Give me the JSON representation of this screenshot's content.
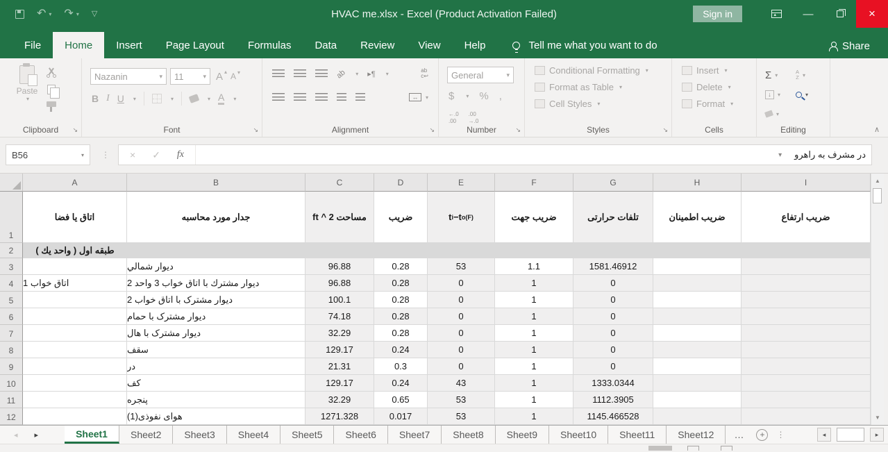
{
  "colors": {
    "excel_green": "#217346",
    "close_red": "#e81123",
    "find_blue": "#2b579a",
    "band_gray": "#d9d9d9"
  },
  "icons": {
    "undo": "↶",
    "redo": "↷",
    "qat_menu": "▽",
    "dropdown": "▾",
    "minimize": "—",
    "close": "×",
    "cancel": "×",
    "check": "✓",
    "fx": "fx",
    "autosum": "Σ",
    "collapse": "∧",
    "dots": "⋮",
    "ellipsis": "…",
    "add_sheet": "+",
    "nav_left": "◂",
    "nav_right": "▸",
    "scroll_up": "▲",
    "scroll_down": "▼",
    "merge_arrows": "↔",
    "fill_down": "↓",
    "direction_mark": "▸¶",
    "orientation": "ab",
    "wrap_line1": "ab",
    "wrap_line2": "c↩",
    "sort_a": "A",
    "sort_z": "Z"
  },
  "titlebar": {
    "title": "HVAC me.xlsx  -  Excel (Product Activation Failed)",
    "sign_in": "Sign in"
  },
  "menu": {
    "tabs": [
      "File",
      "Home",
      "Insert",
      "Page Layout",
      "Formulas",
      "Data",
      "Review",
      "View",
      "Help"
    ],
    "active_tab": "Home",
    "tell_me": "Tell me what you want to do",
    "share": "Share"
  },
  "ribbon": {
    "clipboard": {
      "label": "Clipboard",
      "paste": "Paste"
    },
    "font": {
      "label": "Font",
      "font_name": "Nazanin",
      "font_size": "11",
      "bold": "B",
      "italic": "I",
      "underline": "U",
      "color_a": "A"
    },
    "alignment": {
      "label": "Alignment"
    },
    "number": {
      "label": "Number",
      "format": "General",
      "currency": "$",
      "percent": "%",
      "comma": ",",
      "inc_top": "←.0",
      "inc_bottom": ".00",
      "dec_top": ".00",
      "dec_bottom": "→.0"
    },
    "styles": {
      "label": "Styles",
      "items": [
        "Conditional Formatting",
        "Format as Table",
        "Cell Styles"
      ]
    },
    "cells": {
      "label": "Cells",
      "items": [
        "Insert",
        "Delete",
        "Format"
      ]
    },
    "editing": {
      "label": "Editing"
    }
  },
  "formula_bar": {
    "name_box": "B56",
    "content": "در مشرف به راهرو"
  },
  "sheet": {
    "col_letters": [
      "A",
      "B",
      "C",
      "D",
      "E",
      "F",
      "G",
      "H",
      "I"
    ],
    "header_row_number": "1",
    "band_row_number": "2",
    "headers": {
      "a": "اتاق يا فضا",
      "b": "جدار مورد محاسبه",
      "c": "مساحت ft ^ 2",
      "d": "ضريب",
      "e_base1": "t",
      "e_sub1": "i",
      "e_minus": " − ",
      "e_base2": "t",
      "e_sub2": "o(F)",
      "f": "ضريب جهت",
      "g": "تلفات حرارتى",
      "h": "ضريب اطمينان",
      "i": "ضريب ارتفاع"
    },
    "band_text": "طبقه اول ( واحد يك )",
    "rows": [
      {
        "n": "3",
        "a": "",
        "b": "ديوار شمالي",
        "c": "96.88",
        "d": "0.28",
        "e": "53",
        "f": "1.1",
        "g": "1581.46912",
        "h": "",
        "i": ""
      },
      {
        "n": "4",
        "a": "اتاق خواب 1",
        "b": "ديوار مشترك با اتاق خواب 3 واحد 2",
        "c": "96.88",
        "d": "0.28",
        "e": "0",
        "f": "1",
        "g": "0",
        "h": "",
        "i": ""
      },
      {
        "n": "5",
        "a": "",
        "b": "ديوار مشترک با اتاق خواب 2",
        "c": "100.1",
        "d": "0.28",
        "e": "0",
        "f": "1",
        "g": "0",
        "h": "",
        "i": ""
      },
      {
        "n": "6",
        "a": "",
        "b": "ديوار مشترک با حمام",
        "c": "74.18",
        "d": "0.28",
        "e": "0",
        "f": "1",
        "g": "0",
        "h": "",
        "i": ""
      },
      {
        "n": "7",
        "a": "",
        "b": "ديوار مشترک با هال",
        "c": "32.29",
        "d": "0.28",
        "e": "0",
        "f": "1",
        "g": "0",
        "h": "",
        "i": ""
      },
      {
        "n": "8",
        "a": "",
        "b": "سقف",
        "c": "129.17",
        "d": "0.24",
        "e": "0",
        "f": "1",
        "g": "0",
        "h": "",
        "i": ""
      },
      {
        "n": "9",
        "a": "",
        "b": "در",
        "c": "21.31",
        "d": "0.3",
        "e": "0",
        "f": "1",
        "g": "0",
        "h": "",
        "i": ""
      },
      {
        "n": "10",
        "a": "",
        "b": "كف",
        "c": "129.17",
        "d": "0.24",
        "e": "43",
        "f": "1",
        "g": "1333.0344",
        "h": "",
        "i": ""
      },
      {
        "n": "11",
        "a": "",
        "b": "پنجره",
        "c": "32.29",
        "d": "0.65",
        "e": "53",
        "f": "1",
        "g": "1112.3905",
        "h": "",
        "i": ""
      },
      {
        "n": "12",
        "a": "",
        "b": "هواى نفوذى(1)",
        "c": "1271.328",
        "d": "0.017",
        "e": "53",
        "f": "1",
        "g": "1145.466528",
        "h": "",
        "i": ""
      }
    ]
  },
  "sheet_tabs": {
    "names": [
      "Sheet1",
      "Sheet2",
      "Sheet3",
      "Sheet4",
      "Sheet5",
      "Sheet6",
      "Sheet7",
      "Sheet8",
      "Sheet9",
      "Sheet10",
      "Sheet11",
      "Sheet12"
    ],
    "active": "Sheet1",
    "overflow": "…"
  }
}
